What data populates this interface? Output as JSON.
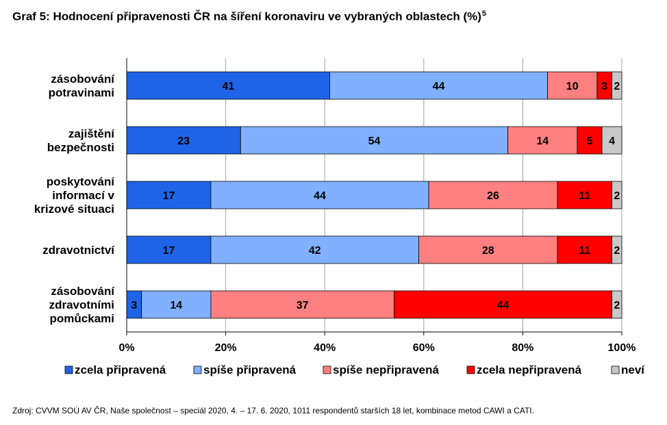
{
  "title": "Graf 5: Hodnocení připravenosti ČR na šíření koronaviru ve vybraných oblastech (%)",
  "title_sup": "5",
  "source": "Zdroj: CVVM SOÚ AV ČR, Naše společnost – speciál 2020, 4. – 17. 6. 2020, 1011 respondentů starších 18 let, kombinace metod CAWI a CATI.",
  "chart_data": {
    "type": "bar",
    "orientation": "horizontal",
    "stacking": "percent",
    "categories": [
      [
        "zásobování",
        "potravinami"
      ],
      [
        "zajištění",
        "bezpečnosti"
      ],
      [
        "poskytování",
        "informací v",
        "krizové situaci"
      ],
      [
        "zdravotnictví"
      ],
      [
        "zásobování",
        "zdravotními",
        "pomůckami"
      ]
    ],
    "series": [
      {
        "name": "zcela připravená",
        "color": "#1f64e6",
        "values": [
          41,
          23,
          17,
          17,
          3
        ]
      },
      {
        "name": "spíše připravená",
        "color": "#80b0ff",
        "values": [
          44,
          54,
          44,
          42,
          14
        ]
      },
      {
        "name": "spíše nepřipravená",
        "color": "#ff8080",
        "values": [
          10,
          14,
          26,
          28,
          37
        ]
      },
      {
        "name": "zcela nepřipravená",
        "color": "#ff0000",
        "values": [
          3,
          5,
          11,
          11,
          44
        ]
      },
      {
        "name": "neví",
        "color": "#c8c8c8",
        "values": [
          2,
          4,
          2,
          2,
          2
        ]
      }
    ],
    "xlim": [
      0,
      100
    ],
    "x_ticks": [
      "0%",
      "20%",
      "40%",
      "60%",
      "80%",
      "100%"
    ],
    "grid": true,
    "legend_position": "bottom"
  }
}
